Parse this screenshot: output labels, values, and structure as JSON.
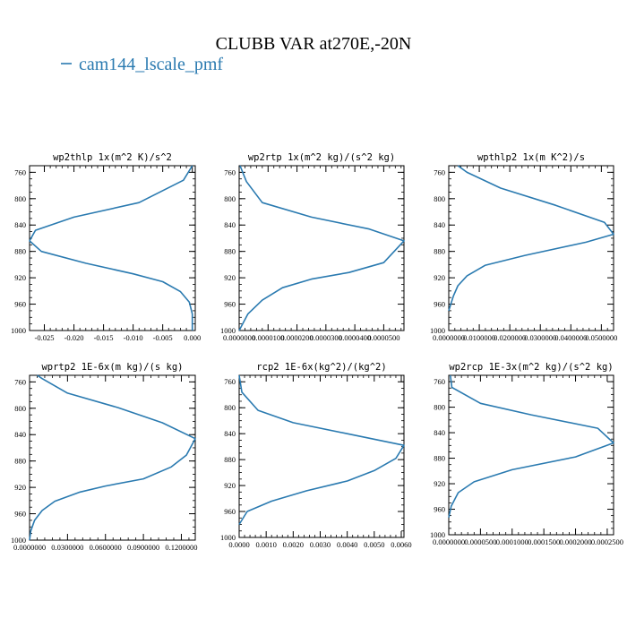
{
  "figure": {
    "title": "CLUBB VAR at270E,-20N",
    "legend": [
      {
        "name": "cam144_lscale_pmf",
        "color": "#2a7ab0"
      }
    ]
  },
  "chart_data": [
    {
      "type": "line",
      "title": "wp2thlp  1x(m^2 K)/s^2",
      "xlim": [
        -0.0275,
        0.0005
      ],
      "ylim": [
        1000,
        750
      ],
      "xticks": [
        -0.025,
        -0.02,
        -0.015,
        -0.01,
        -0.005,
        0
      ],
      "xtick_labels": [
        "-0.025",
        "-0.020",
        "-0.015",
        "-0.010",
        "-0.005",
        "0.000"
      ],
      "yticks": [
        760,
        800,
        840,
        880,
        920,
        960,
        1000
      ],
      "series": [
        {
          "name": "cam144_lscale_pmf",
          "color": "#2a7ab0",
          "x": [
            0.0,
            -0.0015,
            -0.009,
            -0.02,
            -0.0265,
            -0.0275,
            -0.0255,
            -0.018,
            -0.01,
            -0.005,
            -0.002,
            -0.0005,
            0.0,
            0.0
          ],
          "y": [
            750,
            772,
            806,
            828,
            848,
            864,
            880,
            898,
            914,
            926,
            941,
            957,
            975,
            1000
          ]
        }
      ]
    },
    {
      "type": "line",
      "title": "wp2rtp  1x(m^2 kg)/(s^2 kg)",
      "xlim": [
        0,
        5.7e-05
      ],
      "ylim": [
        1000,
        750
      ],
      "xticks": [
        0,
        1e-05,
        2e-05,
        3e-05,
        4e-05,
        5e-05
      ],
      "xtick_labels": [
        "0.0000000",
        "0.0000100",
        "0.0000200",
        "0.0000300",
        "0.0000400",
        "0.0000500"
      ],
      "yticks": [
        760,
        800,
        840,
        880,
        920,
        960,
        1000
      ],
      "series": [
        {
          "name": "cam144_lscale_pmf",
          "color": "#2a7ab0",
          "x": [
            3e-07,
            2.5e-06,
            8e-06,
            2.5e-05,
            4.5e-05,
            5.7e-05,
            5e-05,
            3.8e-05,
            2.5e-05,
            1.5e-05,
            8e-06,
            3e-06,
            0.0
          ],
          "y": [
            750,
            774,
            806,
            828,
            846,
            864,
            897,
            912,
            922,
            935,
            954,
            975,
            1000
          ]
        }
      ]
    },
    {
      "type": "line",
      "title": "wpthlp2  1x(m K^2)/s",
      "xlim": [
        0,
        0.054
      ],
      "ylim": [
        1000,
        750
      ],
      "xticks": [
        0,
        0.01,
        0.02,
        0.03,
        0.04,
        0.05
      ],
      "xtick_labels": [
        "0.0000000",
        "0.0100000",
        "0.0200000",
        "0.0300000",
        "0.0400000",
        "0.0500000"
      ],
      "yticks": [
        760,
        800,
        840,
        880,
        920,
        960,
        1000
      ],
      "series": [
        {
          "name": "cam144_lscale_pmf",
          "color": "#2a7ab0",
          "x": [
            0.003,
            0.006,
            0.017,
            0.035,
            0.051,
            0.054,
            0.045,
            0.025,
            0.012,
            0.006,
            0.003,
            0.0015,
            0.0
          ],
          "y": [
            750,
            760,
            784,
            810,
            836,
            854,
            866,
            886,
            901,
            917,
            932,
            948,
            970
          ]
        }
      ]
    },
    {
      "type": "line",
      "title": "wprtp2  1E-6x(m kg)/(s kg)",
      "xlim": [
        0,
        0.131
      ],
      "ylim": [
        1000,
        750
      ],
      "xticks": [
        0,
        0.03,
        0.06,
        0.09,
        0.12
      ],
      "xtick_labels": [
        "0.0000000",
        "0.0300000",
        "0.0600000",
        "0.0900000",
        "0.1200000"
      ],
      "yticks": [
        760,
        800,
        840,
        880,
        920,
        960,
        1000
      ],
      "series": [
        {
          "name": "cam144_lscale_pmf",
          "color": "#2a7ab0",
          "x": [
            0.006,
            0.01,
            0.03,
            0.07,
            0.105,
            0.131,
            0.124,
            0.112,
            0.09,
            0.06,
            0.04,
            0.02,
            0.01,
            0.004,
            0.001,
            0.0
          ],
          "y": [
            750,
            755,
            777,
            799,
            822,
            846,
            871,
            889,
            907,
            918,
            927,
            941,
            955,
            970,
            986,
            1000
          ]
        }
      ]
    },
    {
      "type": "line",
      "title": "rcp2  1E-6x(kg^2)/(kg^2)",
      "xlim": [
        0,
        0.0061
      ],
      "ylim": [
        1000,
        750
      ],
      "xticks": [
        0,
        0.001,
        0.002,
        0.003,
        0.004,
        0.005,
        0.006
      ],
      "xtick_labels": [
        "0.0000",
        "0.0010",
        "0.0020",
        "0.0030",
        "0.0040",
        "0.0050",
        "0.0060"
      ],
      "yticks": [
        760,
        800,
        840,
        880,
        920,
        960,
        1000
      ],
      "series": [
        {
          "name": "cam144_lscale_pmf",
          "color": "#2a7ab0",
          "x": [
            0.0,
            0.0001,
            0.0007,
            0.002,
            0.004,
            0.0061,
            0.0058,
            0.005,
            0.004,
            0.0025,
            0.0012,
            0.0003,
            0.0
          ],
          "y": [
            750,
            776,
            804,
            823,
            840,
            858,
            878,
            897,
            913,
            928,
            944,
            960,
            980
          ]
        }
      ]
    },
    {
      "type": "line",
      "title": "wp2rcp  1E-3x(m^2 kg)/(s^2 kg)",
      "xlim": [
        0,
        0.00026
      ],
      "ylim": [
        1000,
        750
      ],
      "xticks": [
        0,
        5e-05,
        0.0001,
        0.00015,
        0.0002,
        0.00025
      ],
      "xtick_labels": [
        "0.0000000",
        "0.0000500",
        "0.0001000",
        "0.0001500",
        "0.0002000",
        "0.0002500"
      ],
      "yticks": [
        760,
        800,
        840,
        880,
        920,
        960,
        1000
      ],
      "series": [
        {
          "name": "cam144_lscale_pmf",
          "color": "#2a7ab0",
          "x": [
            2.5e-06,
            5e-06,
            5e-05,
            0.00013,
            0.000235,
            0.00026,
            0.0002,
            0.0001,
            4e-05,
            1.5e-05,
            4e-06,
            0.0
          ],
          "y": [
            750,
            769,
            794,
            812,
            833,
            856,
            878,
            898,
            917,
            934,
            955,
            973
          ]
        }
      ]
    }
  ]
}
